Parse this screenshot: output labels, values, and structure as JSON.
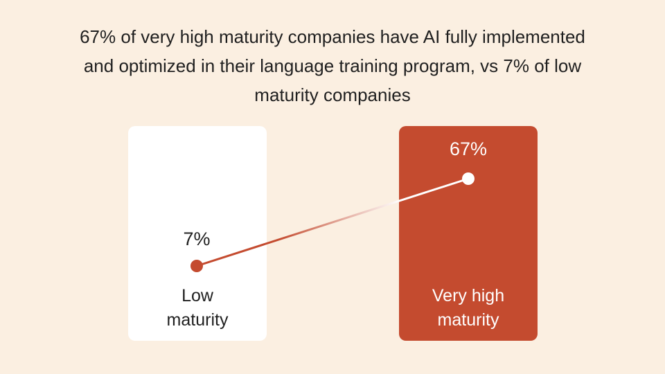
{
  "chart_data": {
    "type": "line",
    "title": "67% of very high maturity companies have AI fully implemented and optimized in their language training program, vs 7% of low maturity companies",
    "categories": [
      "Low maturity",
      "Very high maturity"
    ],
    "category_lines": [
      [
        "Low",
        "maturity"
      ],
      [
        "Very high",
        "maturity"
      ]
    ],
    "values": [
      7,
      67
    ],
    "data_labels": [
      "7%",
      "67%"
    ],
    "unit": "%"
  },
  "colors": {
    "background": "#FBEFE1",
    "accent": "#C44B2F",
    "card_low": "#FFFFFF",
    "text": "#1F1F1F"
  }
}
